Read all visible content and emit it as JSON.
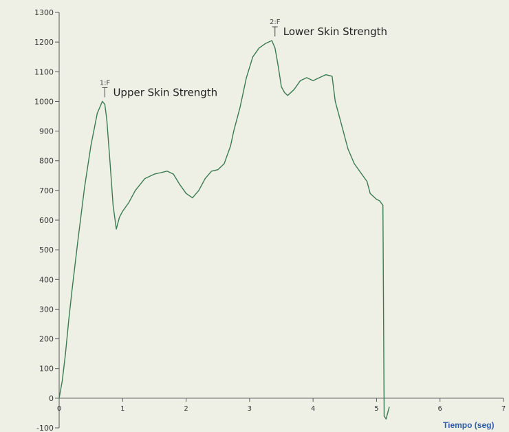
{
  "chart_data": {
    "type": "line",
    "xlabel": "Tiempo (seg)",
    "ylabel": "",
    "xlim": [
      0,
      7
    ],
    "ylim": [
      -100,
      1300
    ],
    "x_ticks": [
      "0",
      "1",
      "2",
      "3",
      "4",
      "5",
      "6",
      "7"
    ],
    "y_ticks": [
      "-100",
      "0",
      "100",
      "200",
      "300",
      "400",
      "500",
      "600",
      "700",
      "800",
      "900",
      "1000",
      "1100",
      "1200",
      "1300"
    ],
    "grid": false,
    "colors": {
      "line": "#3a7a52",
      "axis": "#555555",
      "xlabel": "#2e5aa8",
      "background": "#eef0e6"
    },
    "series": [
      {
        "x": [
          0,
          0.05,
          0.1,
          0.15,
          0.2,
          0.3,
          0.4,
          0.5,
          0.6,
          0.68,
          0.72,
          0.75,
          0.8,
          0.85,
          0.9,
          0.95,
          1.0,
          1.1,
          1.2,
          1.35,
          1.5,
          1.6,
          1.7,
          1.8,
          1.9,
          2.0,
          2.1,
          2.2,
          2.3,
          2.4,
          2.5,
          2.6,
          2.7,
          2.75,
          2.85,
          2.95,
          3.05,
          3.15,
          3.25,
          3.35,
          3.4,
          3.45,
          3.5,
          3.55,
          3.6,
          3.7,
          3.8,
          3.9,
          4.0,
          4.1,
          4.2,
          4.3,
          4.35,
          4.45,
          4.55,
          4.65,
          4.75,
          4.85,
          4.9,
          5.0,
          5.05,
          5.1,
          5.12,
          5.15,
          5.2
        ],
        "y": [
          0,
          60,
          150,
          260,
          360,
          540,
          710,
          850,
          960,
          1000,
          990,
          940,
          800,
          650,
          570,
          610,
          630,
          660,
          700,
          740,
          755,
          760,
          765,
          755,
          720,
          690,
          675,
          700,
          740,
          765,
          770,
          790,
          850,
          900,
          980,
          1080,
          1150,
          1180,
          1195,
          1205,
          1180,
          1120,
          1050,
          1030,
          1020,
          1040,
          1070,
          1080,
          1070,
          1080,
          1090,
          1085,
          1000,
          920,
          840,
          790,
          760,
          730,
          690,
          670,
          665,
          650,
          -60,
          -70,
          -30
        ]
      }
    ],
    "annotations": [
      {
        "marker": "1:F",
        "text": "Upper Skin Strength",
        "x": 0.72,
        "y": 1000
      },
      {
        "marker": "2:F",
        "text": "Lower Skin Strength",
        "x": 3.4,
        "y": 1205
      }
    ]
  }
}
